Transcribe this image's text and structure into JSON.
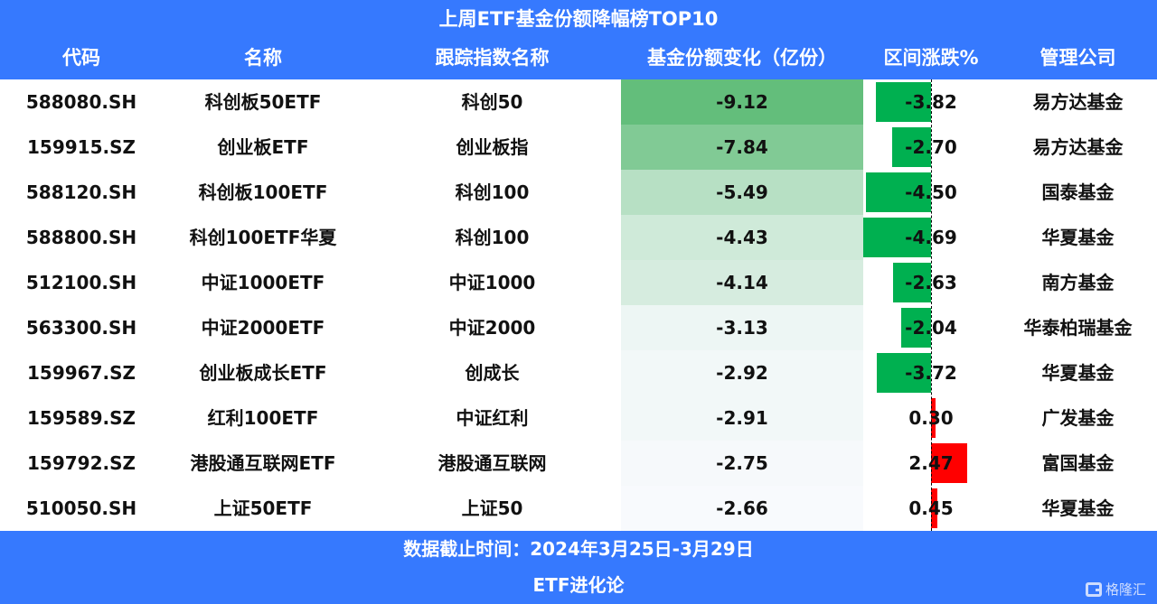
{
  "title": "上周ETF基金份额降幅榜TOP10",
  "columns": [
    "代码",
    "名称",
    "跟踪指数名称",
    "基金份额变化（亿份）",
    "区间涨跌%",
    "管理公司"
  ],
  "rows": [
    {
      "code": "588080.SH",
      "name": "科创板50ETF",
      "index": "科创50",
      "share_change": "-9.12",
      "pct": "-3.82",
      "company": "易方达基金"
    },
    {
      "code": "159915.SZ",
      "name": "创业板ETF",
      "index": "创业板指",
      "share_change": "-7.84",
      "pct": "-2.70",
      "company": "易方达基金"
    },
    {
      "code": "588120.SH",
      "name": "科创板100ETF",
      "index": "科创100",
      "share_change": "-5.49",
      "pct": "-4.50",
      "company": "国泰基金"
    },
    {
      "code": "588800.SH",
      "name": "科创100ETF华夏",
      "index": "科创100",
      "share_change": "-4.43",
      "pct": "-4.69",
      "company": "华夏基金"
    },
    {
      "code": "512100.SH",
      "name": "中证1000ETF",
      "index": "中证1000",
      "share_change": "-4.14",
      "pct": "-2.63",
      "company": "南方基金"
    },
    {
      "code": "563300.SH",
      "name": "中证2000ETF",
      "index": "中证2000",
      "share_change": "-3.13",
      "pct": "-2.04",
      "company": "华泰柏瑞基金"
    },
    {
      "code": "159967.SZ",
      "name": "创业板成长ETF",
      "index": "创成长",
      "share_change": "-2.92",
      "pct": "-3.72",
      "company": "华夏基金"
    },
    {
      "code": "159589.SZ",
      "name": "红利100ETF",
      "index": "中证红利",
      "share_change": "-2.91",
      "pct": "0.30",
      "company": "广发基金"
    },
    {
      "code": "159792.SZ",
      "name": "港股通互联网ETF",
      "index": "港股通互联网",
      "share_change": "-2.75",
      "pct": "2.47",
      "company": "富国基金"
    },
    {
      "code": "510050.SH",
      "name": "上证50ETF",
      "index": "上证50",
      "share_change": "-2.66",
      "pct": "0.45",
      "company": "华夏基金"
    }
  ],
  "footer": {
    "date_range": "数据截止时间：2024年3月25日-3月29日",
    "brand": "ETF进化论",
    "watermark": "格隆汇"
  },
  "colors": {
    "header_bg": "#3679fe",
    "negative_bar": "#00b050",
    "positive_bar": "#ff0000",
    "heat_max": "#63be7b",
    "heat_min": "#f8fafd"
  },
  "chart_data": {
    "type": "table",
    "title": "上周ETF基金份额降幅榜TOP10",
    "columns": [
      "代码",
      "名称",
      "跟踪指数名称",
      "基金份额变化（亿份）",
      "区间涨跌%",
      "管理公司"
    ],
    "categories": [
      "588080.SH",
      "159915.SZ",
      "588120.SH",
      "588800.SH",
      "512100.SH",
      "563300.SH",
      "159967.SZ",
      "159589.SZ",
      "159792.SZ",
      "510050.SH"
    ],
    "series": [
      {
        "name": "基金份额变化（亿份）",
        "values": [
          -9.12,
          -7.84,
          -5.49,
          -4.43,
          -4.14,
          -3.13,
          -2.92,
          -2.91,
          -2.75,
          -2.66
        ],
        "style": "heatmap-green"
      },
      {
        "name": "区间涨跌%",
        "values": [
          -3.82,
          -2.7,
          -4.5,
          -4.69,
          -2.63,
          -2.04,
          -3.72,
          0.3,
          2.47,
          0.45
        ],
        "style": "data-bar"
      }
    ],
    "note": "数据截止时间：2024年3月25日-3月29日"
  }
}
